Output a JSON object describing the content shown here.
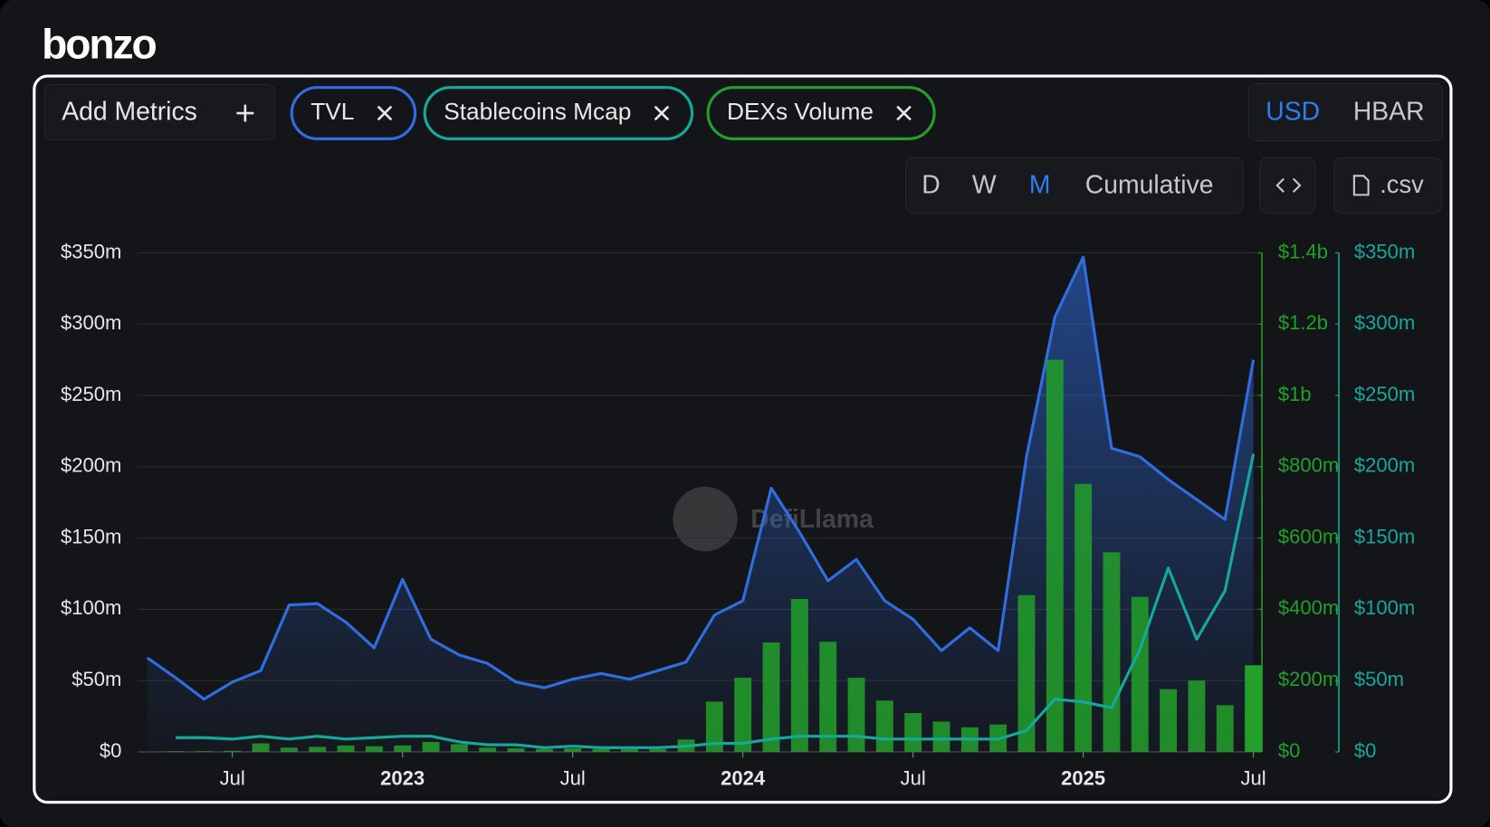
{
  "logo": "bonzo",
  "add_metrics": "Add Metrics",
  "currency": [
    "USD",
    "HBAR"
  ],
  "periods": [
    "D",
    "W",
    "M",
    "Cumulative"
  ],
  "csv_button": ".csv",
  "watermark": "DefiLlama",
  "chart_data": {
    "type": "combo",
    "x": [
      "2022-04",
      "2022-05",
      "2022-06",
      "2022-07",
      "2022-08",
      "2022-09",
      "2022-10",
      "2022-11",
      "2022-12",
      "2023-01",
      "2023-02",
      "2023-03",
      "2023-04",
      "2023-05",
      "2023-06",
      "2023-07",
      "2023-08",
      "2023-09",
      "2023-10",
      "2023-11",
      "2023-12",
      "2024-01",
      "2024-02",
      "2024-03",
      "2024-04",
      "2024-05",
      "2024-06",
      "2024-07",
      "2024-08",
      "2024-09",
      "2024-10",
      "2024-11",
      "2024-12",
      "2025-01",
      "2025-02",
      "2025-03",
      "2025-04",
      "2025-05",
      "2025-06",
      "2025-07"
    ],
    "xticks": [
      {
        "value": "2022-07",
        "label": "Jul"
      },
      {
        "value": "2023-01",
        "label": "2023"
      },
      {
        "value": "2023-07",
        "label": "Jul"
      },
      {
        "value": "2024-01",
        "label": "2024"
      },
      {
        "value": "2024-07",
        "label": "Jul"
      },
      {
        "value": "2025-01",
        "label": "2025"
      },
      {
        "value": "2025-07",
        "label": "Jul"
      }
    ],
    "series": [
      {
        "name": "TVL",
        "color": "#2f6ee0",
        "kind": "area",
        "axis": "y",
        "values": [
          66,
          52,
          37,
          49,
          57,
          103,
          104,
          91,
          73,
          121,
          79,
          68,
          62,
          49,
          45,
          51,
          55,
          51,
          57,
          63,
          96,
          106,
          185,
          154,
          120,
          135,
          106,
          93,
          71,
          87,
          71,
          207,
          305,
          347,
          213,
          207,
          191,
          177,
          163,
          275
        ]
      },
      {
        "name": "Stablecoins Mcap",
        "color": "#16a89c",
        "kind": "line",
        "axis": "y3",
        "values": [
          null,
          10,
          10,
          9,
          11,
          9,
          11,
          9,
          10,
          11,
          11,
          7,
          5,
          5,
          3,
          4,
          3,
          3,
          3,
          4,
          6,
          6,
          9,
          11,
          11,
          11,
          9,
          9,
          9,
          9,
          9,
          15,
          37,
          35,
          31,
          72,
          129,
          79,
          113,
          209
        ]
      },
      {
        "name": "DEXs Volume",
        "color": "#22a02a",
        "kind": "bar",
        "axis": "y2",
        "values": [
          null,
          2,
          2,
          3,
          24,
          12,
          14,
          18,
          16,
          18,
          28,
          22,
          12,
          10,
          8,
          10,
          8,
          8,
          8,
          35,
          141,
          208,
          307,
          429,
          309,
          208,
          144,
          109,
          85,
          69,
          77,
          440,
          1100,
          752,
          560,
          435,
          176,
          200,
          131,
          243
        ]
      }
    ],
    "ylim": [
      0,
      350
    ],
    "yticks": [
      {
        "value": 0,
        "label": "$0"
      },
      {
        "value": 50,
        "label": "$50m"
      },
      {
        "value": 100,
        "label": "$100m"
      },
      {
        "value": 150,
        "label": "$150m"
      },
      {
        "value": 200,
        "label": "$200m"
      },
      {
        "value": 250,
        "label": "$250m"
      },
      {
        "value": 300,
        "label": "$300m"
      },
      {
        "value": 350,
        "label": "$350m"
      }
    ],
    "y2lim": [
      0,
      1400
    ],
    "y2ticks": [
      {
        "value": 0,
        "label": "$0"
      },
      {
        "value": 200,
        "label": "$200m"
      },
      {
        "value": 400,
        "label": "$400m"
      },
      {
        "value": 600,
        "label": "$600m"
      },
      {
        "value": 800,
        "label": "$800m"
      },
      {
        "value": 1000,
        "label": "$1b"
      },
      {
        "value": 1200,
        "label": "$1.2b"
      },
      {
        "value": 1400,
        "label": "$1.4b"
      }
    ],
    "y3lim": [
      0,
      350
    ],
    "y3ticks": [
      {
        "value": 0,
        "label": "$0"
      },
      {
        "value": 50,
        "label": "$50m"
      },
      {
        "value": 100,
        "label": "$100m"
      },
      {
        "value": 150,
        "label": "$150m"
      },
      {
        "value": 200,
        "label": "$200m"
      },
      {
        "value": 250,
        "label": "$250m"
      },
      {
        "value": 300,
        "label": "$300m"
      },
      {
        "value": 350,
        "label": "$350m"
      }
    ],
    "grid": true
  }
}
